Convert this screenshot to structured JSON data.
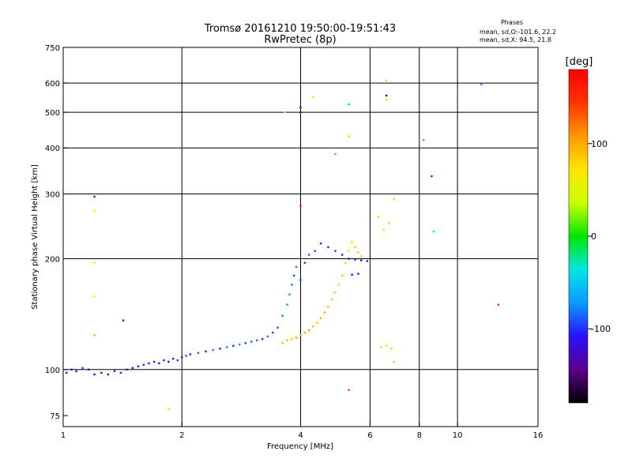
{
  "header": {
    "title_line1": "Tromsø 20161210 19:50:00-19:51:43",
    "title_line2": "RwPretec (8p)"
  },
  "stats": {
    "heading": "Phases",
    "line1": "mean, sd,O:-101.6, 22.2",
    "line2": "mean, sd,X:  94.5, 21.8"
  },
  "colorbar": {
    "label": "[deg]",
    "ticks": [
      {
        "value": 100,
        "label": "100"
      },
      {
        "value": 0,
        "label": "0"
      },
      {
        "value": -100,
        "label": "-100"
      }
    ],
    "range": [
      -180,
      180
    ],
    "colors": [
      "#000000",
      "#5a008c",
      "#2a10ff",
      "#0a9bff",
      "#00e6e6",
      "#00e600",
      "#ccff00",
      "#ffe600",
      "#ff9900",
      "#ff3300",
      "#ff0000"
    ]
  },
  "chart_data": {
    "type": "scatter",
    "title": "Tromsø 20161210 19:50:00-19:51:43",
    "subtitle": "RwPretec (8p)",
    "xlabel": "Frequency [MHz]",
    "ylabel": "Stationary phase Virtual Height [km]",
    "xscale": "log",
    "yscale": "log",
    "xlim": [
      1,
      16
    ],
    "ylim": [
      70,
      750
    ],
    "xticks": [
      {
        "value": 1,
        "label": "1"
      },
      {
        "value": 2,
        "label": "2"
      },
      {
        "value": 4,
        "label": "4"
      },
      {
        "value": 6,
        "label": "6"
      },
      {
        "value": 8,
        "label": "8"
      },
      {
        "value": 10,
        "label": "10"
      },
      {
        "value": 16,
        "label": "16"
      }
    ],
    "yticks": [
      {
        "value": 75,
        "label": "75"
      },
      {
        "value": 100,
        "label": "100"
      },
      {
        "value": 200,
        "label": "200"
      },
      {
        "value": 300,
        "label": "300"
      },
      {
        "value": 400,
        "label": "400"
      },
      {
        "value": 500,
        "label": "500"
      },
      {
        "value": 600,
        "label": "600"
      },
      {
        "value": 750,
        "label": "750"
      }
    ],
    "grid_x": [
      2,
      4,
      6,
      8,
      10
    ],
    "grid_y": [
      100,
      200,
      300,
      400,
      500,
      600
    ],
    "color_variable": "phase [deg]",
    "points": [
      {
        "x": 1.02,
        "y": 98,
        "phase": -110
      },
      {
        "x": 1.05,
        "y": 100,
        "phase": -105
      },
      {
        "x": 1.08,
        "y": 99,
        "phase": -120
      },
      {
        "x": 1.12,
        "y": 101,
        "phase": -100
      },
      {
        "x": 1.16,
        "y": 100,
        "phase": -115
      },
      {
        "x": 1.2,
        "y": 97,
        "phase": -125
      },
      {
        "x": 1.25,
        "y": 98,
        "phase": -110
      },
      {
        "x": 1.3,
        "y": 97,
        "phase": -130
      },
      {
        "x": 1.35,
        "y": 99,
        "phase": -120
      },
      {
        "x": 1.4,
        "y": 98,
        "phase": -105
      },
      {
        "x": 1.45,
        "y": 100,
        "phase": -115
      },
      {
        "x": 1.5,
        "y": 101,
        "phase": -110
      },
      {
        "x": 1.55,
        "y": 102,
        "phase": -125
      },
      {
        "x": 1.6,
        "y": 103,
        "phase": -100
      },
      {
        "x": 1.65,
        "y": 104,
        "phase": -115
      },
      {
        "x": 1.7,
        "y": 105,
        "phase": -120
      },
      {
        "x": 1.75,
        "y": 104,
        "phase": -110
      },
      {
        "x": 1.8,
        "y": 106,
        "phase": -105
      },
      {
        "x": 1.85,
        "y": 105,
        "phase": -125
      },
      {
        "x": 1.9,
        "y": 107,
        "phase": -115
      },
      {
        "x": 1.95,
        "y": 106,
        "phase": -100
      },
      {
        "x": 2.0,
        "y": 108,
        "phase": -110
      },
      {
        "x": 2.05,
        "y": 109,
        "phase": -95
      },
      {
        "x": 2.1,
        "y": 110,
        "phase": -120
      },
      {
        "x": 2.2,
        "y": 111,
        "phase": -90
      },
      {
        "x": 2.3,
        "y": 112,
        "phase": -105
      },
      {
        "x": 2.4,
        "y": 113,
        "phase": -80
      },
      {
        "x": 2.5,
        "y": 114,
        "phase": -110
      },
      {
        "x": 2.6,
        "y": 115,
        "phase": -85
      },
      {
        "x": 2.7,
        "y": 116,
        "phase": -100
      },
      {
        "x": 2.8,
        "y": 117,
        "phase": -75
      },
      {
        "x": 2.9,
        "y": 118,
        "phase": -95
      },
      {
        "x": 3.0,
        "y": 119,
        "phase": -90
      },
      {
        "x": 3.1,
        "y": 120,
        "phase": -80
      },
      {
        "x": 3.2,
        "y": 121,
        "phase": -100
      },
      {
        "x": 3.3,
        "y": 123,
        "phase": -85
      },
      {
        "x": 3.4,
        "y": 126,
        "phase": -95
      },
      {
        "x": 3.5,
        "y": 130,
        "phase": -90
      },
      {
        "x": 3.6,
        "y": 140,
        "phase": -80
      },
      {
        "x": 3.7,
        "y": 150,
        "phase": -75
      },
      {
        "x": 3.75,
        "y": 160,
        "phase": -70
      },
      {
        "x": 3.8,
        "y": 170,
        "phase": -85
      },
      {
        "x": 3.85,
        "y": 180,
        "phase": -90
      },
      {
        "x": 3.9,
        "y": 190,
        "phase": -80
      },
      {
        "x": 4.0,
        "y": 175,
        "phase": -95
      },
      {
        "x": 4.1,
        "y": 195,
        "phase": -100
      },
      {
        "x": 4.2,
        "y": 205,
        "phase": -90
      },
      {
        "x": 4.35,
        "y": 210,
        "phase": -95
      },
      {
        "x": 4.5,
        "y": 220,
        "phase": -100
      },
      {
        "x": 4.7,
        "y": 215,
        "phase": -105
      },
      {
        "x": 4.9,
        "y": 210,
        "phase": -100
      },
      {
        "x": 5.1,
        "y": 205,
        "phase": -110
      },
      {
        "x": 5.3,
        "y": 200,
        "phase": -115
      },
      {
        "x": 5.5,
        "y": 199,
        "phase": -120
      },
      {
        "x": 5.7,
        "y": 198,
        "phase": -115
      },
      {
        "x": 5.9,
        "y": 197,
        "phase": -110
      },
      {
        "x": 5.4,
        "y": 181,
        "phase": -125
      },
      {
        "x": 5.6,
        "y": 182,
        "phase": -120
      },
      {
        "x": 3.6,
        "y": 118,
        "phase": 95
      },
      {
        "x": 3.7,
        "y": 120,
        "phase": 100
      },
      {
        "x": 3.8,
        "y": 121,
        "phase": 90
      },
      {
        "x": 3.9,
        "y": 122,
        "phase": 105
      },
      {
        "x": 4.0,
        "y": 124,
        "phase": 95
      },
      {
        "x": 4.1,
        "y": 126,
        "phase": 100
      },
      {
        "x": 4.2,
        "y": 128,
        "phase": 110
      },
      {
        "x": 4.3,
        "y": 131,
        "phase": 95
      },
      {
        "x": 4.4,
        "y": 134,
        "phase": 90
      },
      {
        "x": 4.5,
        "y": 138,
        "phase": 100
      },
      {
        "x": 4.6,
        "y": 143,
        "phase": 105
      },
      {
        "x": 4.7,
        "y": 148,
        "phase": 95
      },
      {
        "x": 4.8,
        "y": 155,
        "phase": 90
      },
      {
        "x": 4.9,
        "y": 162,
        "phase": 85
      },
      {
        "x": 5.0,
        "y": 170,
        "phase": 80
      },
      {
        "x": 5.1,
        "y": 180,
        "phase": 85
      },
      {
        "x": 5.2,
        "y": 195,
        "phase": 80
      },
      {
        "x": 5.3,
        "y": 210,
        "phase": 75
      },
      {
        "x": 5.4,
        "y": 222,
        "phase": 80
      },
      {
        "x": 5.5,
        "y": 215,
        "phase": 85
      },
      {
        "x": 5.6,
        "y": 208,
        "phase": 90
      },
      {
        "x": 5.7,
        "y": 203,
        "phase": 85
      },
      {
        "x": 6.4,
        "y": 115,
        "phase": 80
      },
      {
        "x": 6.6,
        "y": 116,
        "phase": 75
      },
      {
        "x": 6.8,
        "y": 114,
        "phase": 85
      },
      {
        "x": 6.9,
        "y": 105,
        "phase": 80
      },
      {
        "x": 6.5,
        "y": 240,
        "phase": 75
      },
      {
        "x": 6.7,
        "y": 250,
        "phase": 80
      },
      {
        "x": 6.3,
        "y": 260,
        "phase": 85
      },
      {
        "x": 1.2,
        "y": 295,
        "phase": -120
      },
      {
        "x": 1.2,
        "y": 270,
        "phase": 40
      },
      {
        "x": 1.2,
        "y": 195,
        "phase": 75
      },
      {
        "x": 1.2,
        "y": 158,
        "phase": 60
      },
      {
        "x": 1.2,
        "y": 124,
        "phase": 20
      },
      {
        "x": 1.42,
        "y": 136,
        "phase": -130
      },
      {
        "x": 1.85,
        "y": 78,
        "phase": 55
      },
      {
        "x": 3.65,
        "y": 500,
        "phase": 50
      },
      {
        "x": 4.0,
        "y": 515,
        "phase": -140
      },
      {
        "x": 4.0,
        "y": 500,
        "phase": -110
      },
      {
        "x": 4.3,
        "y": 550,
        "phase": 70
      },
      {
        "x": 4.0,
        "y": 278,
        "phase": 165
      },
      {
        "x": 4.9,
        "y": 385,
        "phase": 120
      },
      {
        "x": 5.3,
        "y": 525,
        "phase": -20
      },
      {
        "x": 5.3,
        "y": 430,
        "phase": 85
      },
      {
        "x": 5.3,
        "y": 88,
        "phase": 140
      },
      {
        "x": 6.6,
        "y": 610,
        "phase": 85
      },
      {
        "x": 6.6,
        "y": 555,
        "phase": -160
      },
      {
        "x": 6.6,
        "y": 540,
        "phase": 80
      },
      {
        "x": 6.9,
        "y": 290,
        "phase": 30
      },
      {
        "x": 8.2,
        "y": 420,
        "phase": -60
      },
      {
        "x": 8.6,
        "y": 335,
        "phase": -100
      },
      {
        "x": 8.7,
        "y": 237,
        "phase": -40
      },
      {
        "x": 11.5,
        "y": 596,
        "phase": -80
      },
      {
        "x": 12.7,
        "y": 150,
        "phase": 150
      }
    ]
  }
}
